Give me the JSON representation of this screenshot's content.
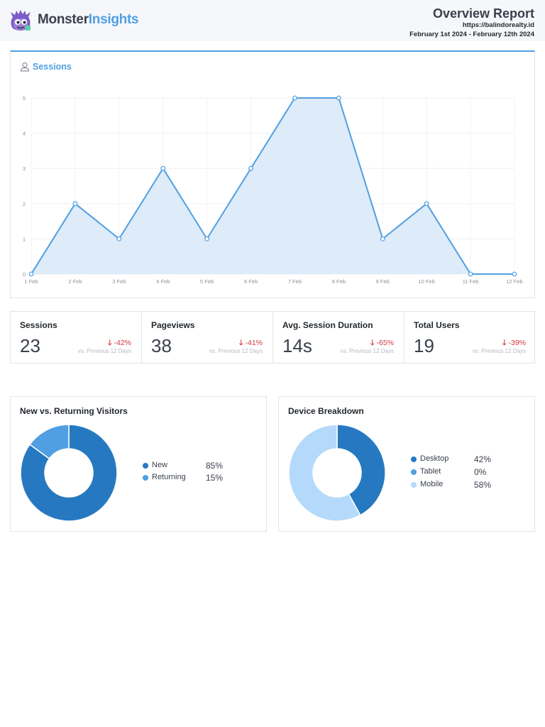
{
  "header": {
    "logo_monster": "Monster",
    "logo_insights": "Insights",
    "title": "Overview Report",
    "url": "https://balindorealty.id",
    "date_range": "February 1st 2024 - February 12th 2024"
  },
  "sessions_panel": {
    "title": "Sessions",
    "icon": "person-icon"
  },
  "chart_data": {
    "type": "area",
    "x": [
      "1 Feb",
      "2 Feb",
      "3 Feb",
      "4 Feb",
      "5 Feb",
      "6 Feb",
      "7 Feb",
      "8 Feb",
      "9 Feb",
      "10 Feb",
      "11 Feb",
      "12 Feb"
    ],
    "series": [
      {
        "values": [
          0,
          2,
          1,
          3,
          1,
          3,
          5,
          5,
          1,
          2,
          0,
          0
        ]
      }
    ],
    "yticks": [
      "0",
      "1",
      "2",
      "3",
      "4",
      "5"
    ],
    "ylim": [
      0,
      5
    ],
    "grid": true,
    "line_color": "#509fe2",
    "fill_color": "#deebf8"
  },
  "stats": [
    {
      "label": "Sessions",
      "value": "23",
      "change": "-42%",
      "compare": "vs. Previous 12 Days"
    },
    {
      "label": "Pageviews",
      "value": "38",
      "change": "-41%",
      "compare": "vs. Previous 12 Days"
    },
    {
      "label": "Avg. Session Duration",
      "value": "14s",
      "change": "-65%",
      "compare": "vs. Previous 12 Days"
    },
    {
      "label": "Total Users",
      "value": "19",
      "change": "-39%",
      "compare": "vs. Previous 12 Days"
    }
  ],
  "down_arrow": "🡓",
  "visitors_panel": {
    "title": "New vs. Returning Visitors",
    "items": [
      {
        "label": "New",
        "value": "85%",
        "percent": 85,
        "color": "#2679c1"
      },
      {
        "label": "Returning",
        "value": "15%",
        "percent": 15,
        "color": "#509fe2"
      }
    ]
  },
  "device_panel": {
    "title": "Device Breakdown",
    "items": [
      {
        "label": "Desktop",
        "value": "42%",
        "percent": 42,
        "color": "#2679c1"
      },
      {
        "label": "Tablet",
        "value": "0%",
        "percent": 0,
        "color": "#509fe2"
      },
      {
        "label": "Mobile",
        "value": "58%",
        "percent": 58,
        "color": "#b4d9fb"
      }
    ]
  }
}
